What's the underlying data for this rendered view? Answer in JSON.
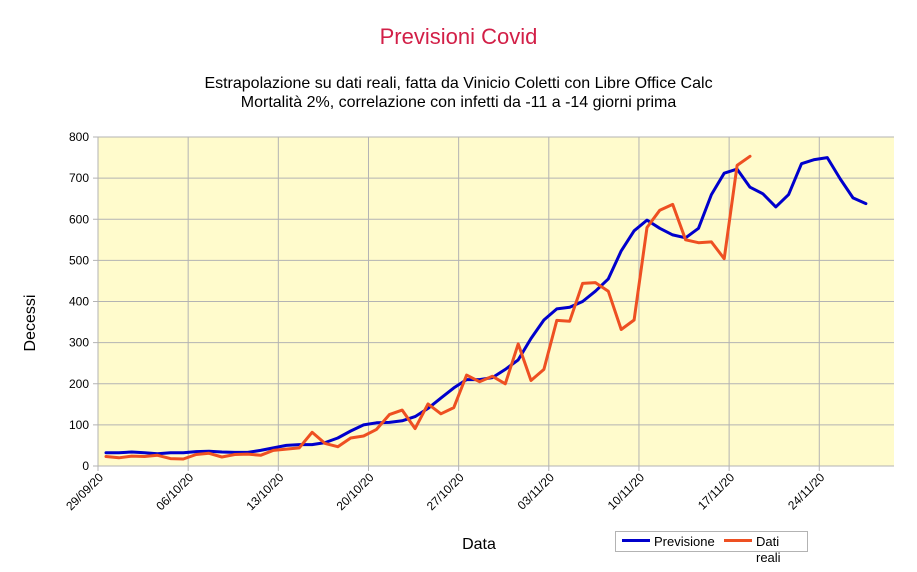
{
  "chart_data": {
    "type": "line",
    "title": "Previsioni Covid",
    "subtitle": [
      "Estrapolazione su dati reali, fatta da Vinicio Coletti con Libre Office Calc",
      "Mortalità 2%, correlazione con infetti da -11 a -14 giorni prima"
    ],
    "xlabel": "Data",
    "ylabel": "Decessi",
    "ylim": [
      0,
      800
    ],
    "yticks": [
      0,
      100,
      200,
      300,
      400,
      500,
      600,
      700,
      800
    ],
    "x_start": "29/09/20",
    "xtick_labels": [
      "29/09/20",
      "06/10/20",
      "13/10/20",
      "20/10/20",
      "27/10/20",
      "03/11/20",
      "10/11/20",
      "17/11/20",
      "24/11/20"
    ],
    "grid": true,
    "legend": "bottom-right",
    "series": [
      {
        "name": "Previsione",
        "color": "#0000cc",
        "values": [
          32,
          32,
          34,
          32,
          30,
          32,
          32,
          35,
          36,
          34,
          33,
          33,
          38,
          44,
          50,
          52,
          52,
          57,
          68,
          85,
          100,
          105,
          106,
          110,
          120,
          140,
          165,
          190,
          210,
          210,
          215,
          235,
          258,
          310,
          355,
          382,
          386,
          400,
          425,
          455,
          523,
          572,
          598,
          578,
          562,
          555,
          578,
          660,
          712,
          722,
          678,
          662,
          630,
          660,
          735,
          745,
          750,
          698,
          652,
          638
        ]
      },
      {
        "name": "Dati reali",
        "color": "#ee5022",
        "values": [
          23,
          20,
          24,
          23,
          26,
          18,
          17,
          28,
          31,
          22,
          28,
          29,
          26,
          38,
          41,
          44,
          82,
          55,
          47,
          68,
          73,
          89,
          125,
          136,
          91,
          151,
          127,
          142,
          221,
          205,
          218,
          200,
          297,
          208,
          235,
          354,
          352,
          444,
          446,
          425,
          332,
          355,
          580,
          622,
          636,
          550,
          543,
          545,
          504,
          731,
          753
        ]
      }
    ]
  }
}
